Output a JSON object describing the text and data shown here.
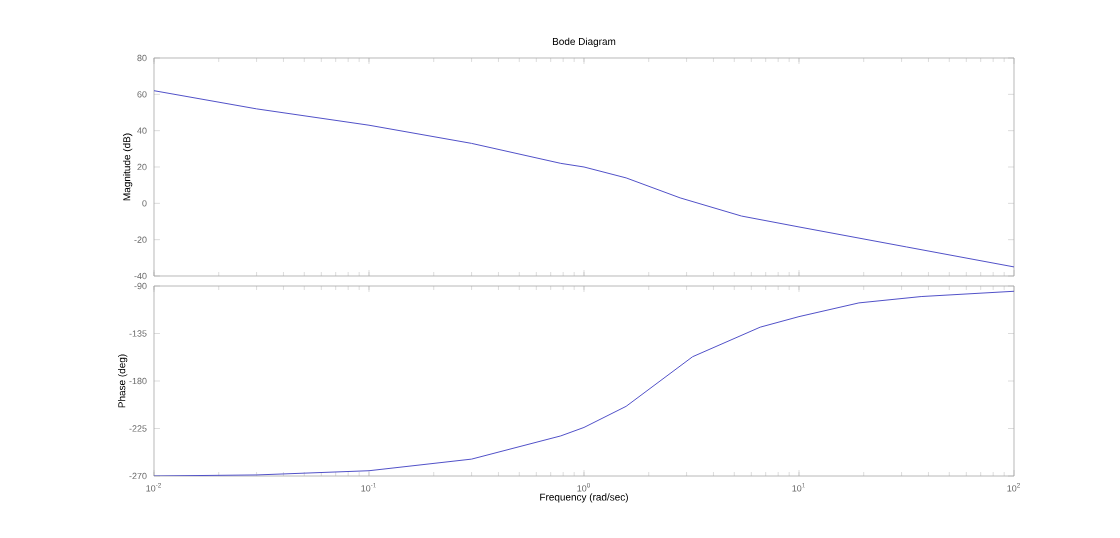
{
  "chart_data": [
    {
      "type": "line",
      "title": "Bode Diagram",
      "ylabel": "Magnitude (dB)",
      "log": "x",
      "grid": false,
      "tick_labels": "y",
      "xlim": [
        0.01,
        100
      ],
      "xticks": [
        0.01,
        0.1,
        1,
        10,
        100
      ],
      "ylim": [
        -40,
        80
      ],
      "yticks": [
        -40,
        -20,
        0,
        20,
        40,
        60,
        80
      ],
      "series": [
        {
          "color": "#5050c8",
          "x": [
            0.01,
            0.03,
            0.1,
            0.3,
            0.78,
            1,
            1.57,
            2.8,
            5.4,
            10,
            31.6,
            100
          ],
          "values": [
            62,
            52,
            43,
            33,
            22,
            20,
            14,
            3,
            -7,
            -13,
            -24,
            -35
          ]
        }
      ]
    },
    {
      "type": "line",
      "xlabel": "Frequency  (rad/sec)",
      "ylabel": "Phase (deg)",
      "log": "x",
      "grid": false,
      "xlim": [
        0.01,
        100
      ],
      "xticks": [
        {
          "value": 0.01,
          "label": "10$^{-2}$"
        },
        {
          "value": 0.1,
          "label": "10$^{-1}$"
        },
        {
          "value": 1,
          "label": "10$^{0}$"
        },
        {
          "value": 10,
          "label": "10$^{1}$"
        },
        {
          "value": 100,
          "label": "10$^{2}$"
        }
      ],
      "ylim": [
        -270,
        -90
      ],
      "yticks": [
        -270,
        -225,
        -180,
        -135,
        -90
      ],
      "series": [
        {
          "color": "#5050c8",
          "x": [
            0.01,
            0.03,
            0.1,
            0.3,
            0.78,
            1,
            1.57,
            3.2,
            6.6,
            10,
            19,
            37,
            100
          ],
          "values": [
            -270,
            -269,
            -265,
            -254,
            -232,
            -224,
            -204,
            -157,
            -129,
            -119,
            -106,
            -100,
            -95
          ]
        }
      ]
    }
  ]
}
